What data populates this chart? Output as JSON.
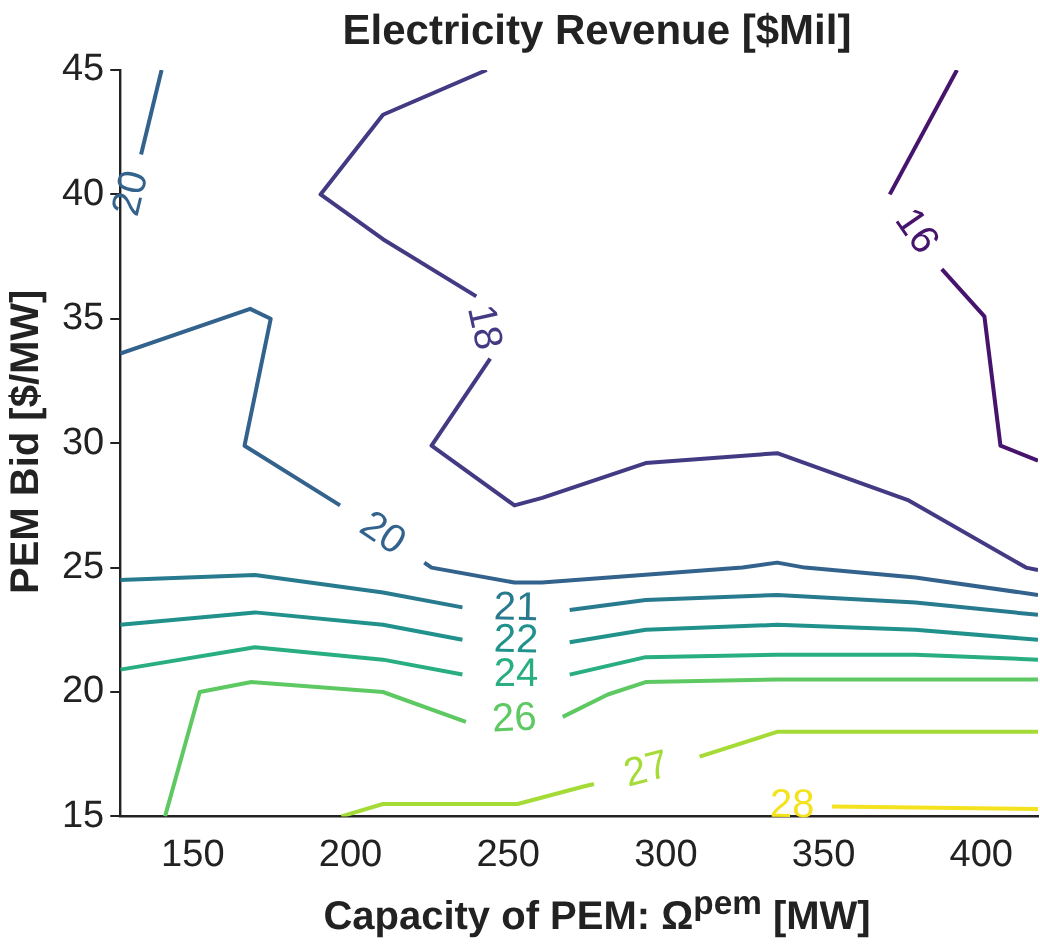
{
  "chart_data": {
    "type": "line",
    "title": "Electricity Revenue [$Mil]",
    "xlabel": "Capacity of PEM: Ω$^{pem}$ [MW]",
    "ylabel": "PEM Bid [$/MW]",
    "xlim": [
      127,
      418
    ],
    "ylim": [
      15,
      45
    ],
    "xticks": [
      150,
      200,
      250,
      300,
      350,
      400
    ],
    "yticks": [
      15,
      20,
      25,
      30,
      35,
      40,
      45
    ],
    "grid": false,
    "legend": false,
    "marker": "none",
    "line_style": "solid",
    "series": [
      {
        "name": "16",
        "color": "#46146c",
        "x": [
          392.3,
          371
        ],
        "values": [
          45,
          40.0
        ]
      },
      {
        "color": "#46146c",
        "x": [
          387.5,
          401,
          406.1,
          418
        ],
        "values": [
          37.0,
          35.1,
          29.9,
          29.3
        ]
      },
      {
        "name": "18",
        "color": "#433a84",
        "x": [
          243.2,
          210.3,
          190.5,
          210.3,
          239.9
        ],
        "values": [
          45,
          43.2,
          40.0,
          38.2,
          35.9
        ]
      },
      {
        "color": "#433a84",
        "x": [
          244.3,
          225.7,
          252.0,
          260.8,
          293.6,
          335.3,
          377,
          414.2,
          418
        ],
        "values": [
          33.4,
          29.9,
          27.5,
          27.8,
          29.2,
          29.6,
          27.7,
          25.0,
          24.9
        ]
      },
      {
        "name": "20",
        "color": "#33638d",
        "x": [
          140.1,
          133.6
        ],
        "values": [
          45,
          41.6
        ]
      },
      {
        "name": "20",
        "color": "#33638d",
        "x": [
          127,
          168.2,
          174.7,
          166.4,
          196.7
        ],
        "values": [
          33.6,
          35.4,
          35.0,
          29.9,
          27.5
        ]
      },
      {
        "color": "#33638d",
        "x": [
          223.4,
          225.7,
          252,
          260.7,
          324.3,
          335.3,
          344.1,
          379.1,
          418
        ],
        "values": [
          25.2,
          25.0,
          24.4,
          24.4,
          25.0,
          25.2,
          25.0,
          24.6,
          23.9
        ]
      },
      {
        "name": "21",
        "color": "#287b8e",
        "x": [
          127,
          169.7,
          210.3,
          235.5
        ],
        "values": [
          24.5,
          24.7,
          24.0,
          23.4
        ]
      },
      {
        "color": "#287b8e",
        "x": [
          269.5,
          293.6,
          335.3,
          379.1,
          418
        ],
        "values": [
          23.3,
          23.7,
          23.9,
          23.6,
          23.1
        ]
      },
      {
        "name": "22",
        "color": "#21918c",
        "x": [
          127,
          169.7,
          210.3,
          235.5
        ],
        "values": [
          22.7,
          23.2,
          22.7,
          22.1
        ]
      },
      {
        "color": "#21918c",
        "x": [
          269.5,
          293.6,
          335.3,
          379.1,
          418
        ],
        "values": [
          22.0,
          22.5,
          22.7,
          22.5,
          22.1
        ]
      },
      {
        "name": "24",
        "color": "#28ae80",
        "x": [
          127,
          169.7,
          210.3,
          235.5
        ],
        "values": [
          20.9,
          21.8,
          21.3,
          20.7
        ]
      },
      {
        "color": "#28ae80",
        "x": [
          269.5,
          293.6,
          335.3,
          379.1,
          418
        ],
        "values": [
          20.7,
          21.4,
          21.5,
          21.5,
          21.3
        ]
      },
      {
        "name": "26",
        "color": "#5ec962",
        "x": [
          141.2,
          152.2,
          168.6,
          210.3,
          236.6
        ],
        "values": [
          15.0,
          20.0,
          20.4,
          20.0,
          18.8
        ]
      },
      {
        "color": "#5ec962",
        "x": [
          267.3,
          281.6,
          293.6,
          335.3,
          418
        ],
        "values": [
          19.0,
          19.9,
          20.4,
          20.5,
          20.5
        ]
      },
      {
        "name": "27",
        "color": "#a5db36",
        "x": [
          197.1,
          210.3,
          253,
          273.9,
          277.2
        ],
        "values": [
          15.0,
          15.5,
          15.5,
          16.2,
          16.3
        ]
      },
      {
        "color": "#a5db36",
        "x": [
          310.7,
          335.3,
          418
        ],
        "values": [
          17.4,
          18.4,
          18.4
        ]
      },
      {
        "name": "28",
        "color": "#f4e21e",
        "x": [
          418,
          352.7
        ],
        "values": [
          15.3,
          15.4
        ]
      }
    ]
  }
}
